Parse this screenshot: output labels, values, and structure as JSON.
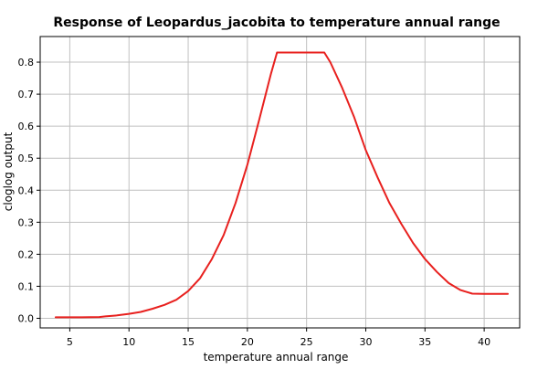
{
  "chart_data": {
    "type": "line",
    "title": "Response of Leopardus_jacobita to temperature annual range",
    "xlabel": "temperature annual range",
    "ylabel": "cloglog output",
    "xlim": [
      2.5,
      43
    ],
    "ylim": [
      -0.03,
      0.88
    ],
    "xticks": [
      5,
      10,
      15,
      20,
      25,
      30,
      35,
      40
    ],
    "yticks": [
      0.0,
      0.1,
      0.2,
      0.3,
      0.4,
      0.5,
      0.6,
      0.7,
      0.8
    ],
    "xtick_labels": [
      "5",
      "10",
      "15",
      "20",
      "25",
      "30",
      "35",
      "40"
    ],
    "ytick_labels": [
      "0.0",
      "0.1",
      "0.2",
      "0.3",
      "0.4",
      "0.5",
      "0.6",
      "0.7",
      "0.8"
    ],
    "grid": true,
    "series": [
      {
        "color": "#e8201e",
        "x": [
          3.8,
          5,
          6,
          7.5,
          8,
          9,
          10,
          11,
          12,
          13,
          14,
          15,
          16,
          17,
          18,
          19,
          20,
          21,
          22,
          22.5,
          23,
          24,
          25,
          26,
          26.5,
          27,
          28,
          29,
          30,
          31,
          32,
          33,
          34,
          35,
          36,
          37,
          38,
          39,
          40,
          41,
          42
        ],
        "y": [
          0.003,
          0.003,
          0.003,
          0.004,
          0.006,
          0.009,
          0.014,
          0.02,
          0.03,
          0.042,
          0.058,
          0.085,
          0.125,
          0.185,
          0.26,
          0.36,
          0.48,
          0.62,
          0.765,
          0.83,
          0.83,
          0.83,
          0.83,
          0.83,
          0.83,
          0.8,
          0.72,
          0.63,
          0.525,
          0.44,
          0.36,
          0.295,
          0.235,
          0.185,
          0.145,
          0.11,
          0.088,
          0.077,
          0.076,
          0.076,
          0.076
        ]
      }
    ]
  },
  "colors": {
    "line": "#e8201e",
    "grid": "#c0c0c0",
    "axis": "#000000",
    "background": "#ffffff"
  }
}
